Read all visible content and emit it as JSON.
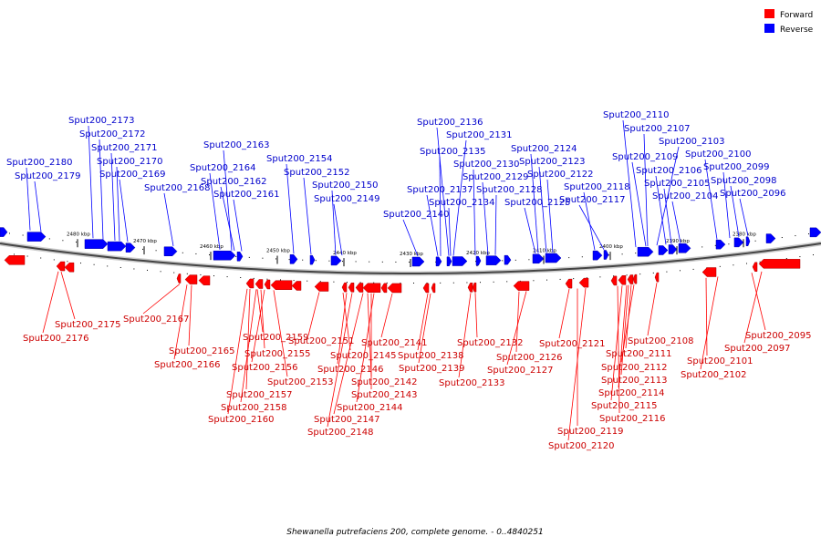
{
  "caption": "Shewanella putrefaciens 200, complete genome. - 0..4840251",
  "legend": {
    "forward": {
      "label": "Forward",
      "color": "#ff0000"
    },
    "reverse": {
      "label": "Reverse",
      "color": "#0000ff"
    }
  },
  "ticks": [
    "2480 kbp",
    "2470 kbp",
    "2460 kbp",
    "2450 kbp",
    "2440 kbp",
    "2430 kbp",
    "2420 kbp",
    "2410 kbp",
    "2400 kbp",
    "2390 kbp",
    "2380 kbp"
  ],
  "reverse_labels": [
    "Sput200_2173",
    "Sput200_2172",
    "Sput200_2171",
    "Sput200_2170",
    "Sput200_2169",
    "Sput200_2180",
    "Sput200_2179",
    "Sput200_2168",
    "Sput200_2163",
    "Sput200_2164",
    "Sput200_2162",
    "Sput200_2161",
    "Sput200_2154",
    "Sput200_2152",
    "Sput200_2150",
    "Sput200_2149",
    "Sput200_2136",
    "Sput200_2131",
    "Sput200_2135",
    "Sput200_2130",
    "Sput200_2129",
    "Sput200_2137",
    "Sput200_2134",
    "Sput200_2140",
    "Sput200_2128",
    "Sput200_2124",
    "Sput200_2123",
    "Sput200_2122",
    "Sput200_2125",
    "Sput200_2118",
    "Sput200_2117",
    "Sput200_2110",
    "Sput200_2107",
    "Sput200_2103",
    "Sput200_2109",
    "Sput200_2106",
    "Sput200_2100",
    "Sput200_2099",
    "Sput200_2105",
    "Sput200_2098",
    "Sput200_2104",
    "Sput200_2096"
  ],
  "forward_labels": [
    "Sput200_2175",
    "Sput200_2176",
    "Sput200_2167",
    "Sput200_2165",
    "Sput200_2166",
    "Sput200_2159",
    "Sput200_2155",
    "Sput200_2156",
    "Sput200_2153",
    "Sput200_2157",
    "Sput200_2158",
    "Sput200_2160",
    "Sput200_2151",
    "Sput200_2145",
    "Sput200_2146",
    "Sput200_2142",
    "Sput200_2143",
    "Sput200_2144",
    "Sput200_2147",
    "Sput200_2148",
    "Sput200_2141",
    "Sput200_2138",
    "Sput200_2139",
    "Sput200_2133",
    "Sput200_2132",
    "Sput200_2126",
    "Sput200_2127",
    "Sput200_2121",
    "Sput200_2119",
    "Sput200_2120",
    "Sput200_2108",
    "Sput200_2111",
    "Sput200_2112",
    "Sput200_2113",
    "Sput200_2114",
    "Sput200_2115",
    "Sput200_2116",
    "Sput200_2101",
    "Sput200_2102",
    "Sput200_2095",
    "Sput200_2097"
  ]
}
